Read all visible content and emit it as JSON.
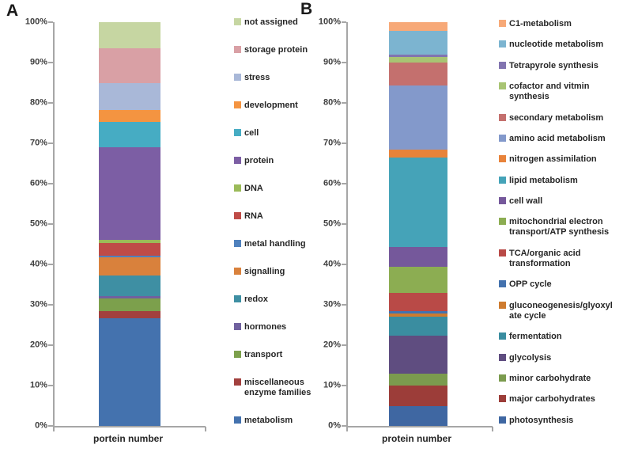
{
  "figure": {
    "background": "#ffffff",
    "axis_color": "#a6a6a6",
    "text_color": "#262626"
  },
  "chart_data": [
    {
      "type": "bar",
      "subtype": "100%-stacked-column",
      "panel_label": "A",
      "title": "",
      "xlabel": "portein number",
      "ylabel": "",
      "ylim": [
        0,
        100
      ],
      "y_tick_labels": [
        "0%",
        "10%",
        "20%",
        "30%",
        "40%",
        "50%",
        "60%",
        "70%",
        "80%",
        "90%",
        "100%"
      ],
      "categories": [
        "portein number"
      ],
      "grid": false,
      "legend_position": "right",
      "series_bottom_to_top": [
        {
          "name": "metabolism",
          "color": "#4472AE",
          "value_percent": 26.7
        },
        {
          "name": "miscellaneous enzyme families",
          "color": "#A2403E",
          "value_percent": 1.7
        },
        {
          "name": "transport",
          "color": "#7CA04C",
          "value_percent": 3.2
        },
        {
          "name": "hormones",
          "color": "#70619F",
          "value_percent": 0.5
        },
        {
          "name": "redox",
          "color": "#3E8FA3",
          "value_percent": 5.2
        },
        {
          "name": "signalling",
          "color": "#D9813C",
          "value_percent": 4.5
        },
        {
          "name": "metal handling",
          "color": "#4F81BD",
          "value_percent": 0.4
        },
        {
          "name": "RNA",
          "color": "#BF4B47",
          "value_percent": 3.1
        },
        {
          "name": "DNA",
          "color": "#9BBB59",
          "value_percent": 0.8
        },
        {
          "name": "protein",
          "color": "#7C5EA4",
          "value_percent": 22.9
        },
        {
          "name": "cell",
          "color": "#46ACC3",
          "value_percent": 6.3
        },
        {
          "name": "development",
          "color": "#F49441",
          "value_percent": 2.9
        },
        {
          "name": "stress",
          "color": "#A9B8D8",
          "value_percent": 6.7
        },
        {
          "name": "storage protein",
          "color": "#D9A0A5",
          "value_percent": 8.6
        },
        {
          "name": "not assigned",
          "color": "#C6D6A2",
          "value_percent": 6.5
        }
      ]
    },
    {
      "type": "bar",
      "subtype": "100%-stacked-column",
      "panel_label": "B",
      "title": "",
      "xlabel": "protein number",
      "ylabel": "",
      "ylim": [
        0,
        100
      ],
      "y_tick_labels": [
        "0%",
        "10%",
        "20%",
        "30%",
        "40%",
        "50%",
        "60%",
        "70%",
        "80%",
        "90%",
        "100%"
      ],
      "categories": [
        "protein number"
      ],
      "grid": false,
      "legend_position": "right",
      "series_bottom_to_top": [
        {
          "name": "photosynthesis",
          "color": "#3F67A2",
          "value_percent": 4.9
        },
        {
          "name": "major carbohydrates",
          "color": "#9C3D39",
          "value_percent": 5.2
        },
        {
          "name": "minor carbohydrate",
          "color": "#7B9B4E",
          "value_percent": 2.9
        },
        {
          "name": "glycolysis",
          "color": "#5F4D80",
          "value_percent": 9.4
        },
        {
          "name": "fermentation",
          "color": "#3A8DA0",
          "value_percent": 4.7
        },
        {
          "name": "gluconeogenesis/glyoxylate cycle",
          "color": "#CE7B2F",
          "value_percent": 0.8
        },
        {
          "name": "OPP cycle",
          "color": "#4472AE",
          "value_percent": 0.5
        },
        {
          "name": "TCA/organic acid transformation",
          "color": "#B94A47",
          "value_percent": 4.5
        },
        {
          "name": "mitochondrial electron transport/ATP synthesis",
          "color": "#8CAD52",
          "value_percent": 6.5
        },
        {
          "name": "cell wall",
          "color": "#75589B",
          "value_percent": 4.9
        },
        {
          "name": "lipid metabolism",
          "color": "#45A3B8",
          "value_percent": 22.2
        },
        {
          "name": "nitrogen assimilation",
          "color": "#E8833A",
          "value_percent": 1.9
        },
        {
          "name": "amino acid metabolism",
          "color": "#8399CB",
          "value_percent": 15.9
        },
        {
          "name": "secondary metabolism",
          "color": "#C4706E",
          "value_percent": 5.7
        },
        {
          "name": "cofactor and vitmin synthesis",
          "color": "#A8C473",
          "value_percent": 1.4
        },
        {
          "name": "Tetrapyrole synthesis",
          "color": "#8274B0",
          "value_percent": 0.5
        },
        {
          "name": "nucleotide metabolism",
          "color": "#7CB4D0",
          "value_percent": 5.9
        },
        {
          "name": "C1-metabolism",
          "color": "#F7A978",
          "value_percent": 2.2
        }
      ]
    }
  ]
}
